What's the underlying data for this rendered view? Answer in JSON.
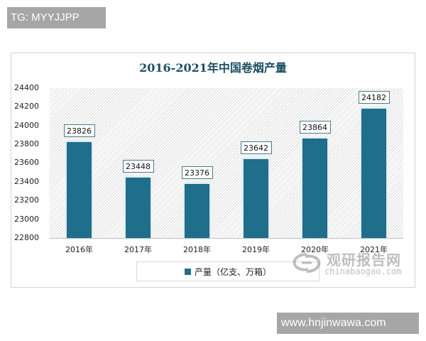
{
  "overlay": {
    "top_tag": "TG: MYYJJPP",
    "bottom_tag": "www.hnjinwawa.com"
  },
  "watermark": {
    "brand_cn": "观研报告网",
    "brand_en": "chinabaogao.com"
  },
  "colors": {
    "bar": "#1f6e8c",
    "title": "#1d4e63"
  },
  "chart_data": {
    "type": "bar",
    "title": "2016-2021年中国卷烟产量",
    "categories": [
      "2016年",
      "2017年",
      "2018年",
      "2019年",
      "2020年",
      "2021年"
    ],
    "series": [
      {
        "name": "产量（亿支、万箱）",
        "values": [
          23826,
          23448,
          23376,
          23642,
          23864,
          24182
        ]
      }
    ],
    "data_labels": [
      "23826",
      "23448",
      "23376",
      "23642",
      "23864",
      "24182"
    ],
    "xlabel": "",
    "ylabel": "",
    "ylim": [
      22800,
      24400
    ],
    "yticks": [
      "24400",
      "24200",
      "24000",
      "23800",
      "23600",
      "23400",
      "23200",
      "23000",
      "22800"
    ],
    "grid": false,
    "legend_position": "bottom"
  }
}
